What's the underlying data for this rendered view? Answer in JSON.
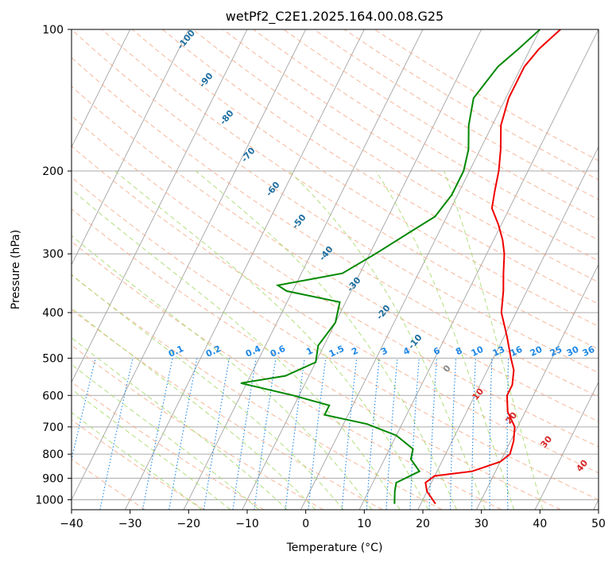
{
  "chart_data": {
    "type": "skew-t",
    "title": "wetPf2_C2E1.2025.164.00.08.G25",
    "xlabel": "Temperature (°C)",
    "ylabel": "Pressure (hPa)",
    "xlim": [
      -40,
      50
    ],
    "ylim": [
      1050,
      100
    ],
    "x_scale": "linear",
    "y_scale": "log",
    "skew_degrees_per_decade": 40,
    "x_ticks": [
      -40,
      -30,
      -20,
      -10,
      0,
      10,
      20,
      30,
      40,
      50
    ],
    "x_tick_labels": [
      "−40",
      "−30",
      "−20",
      "−10",
      "0",
      "10",
      "20",
      "30",
      "40",
      "50"
    ],
    "y_ticks": [
      100,
      200,
      300,
      400,
      500,
      600,
      700,
      800,
      900,
      1000
    ],
    "y_tick_labels": [
      "100",
      "200",
      "300",
      "400",
      "500",
      "600",
      "700",
      "800",
      "900",
      "1000"
    ],
    "grid": true,
    "colors": {
      "temperature": "#ee0000",
      "dewpoint": "#008800",
      "dry_adiabats": "#f4a582",
      "moist_adiabats": "#a6d96a",
      "mixing_ratio": "#1e88e5",
      "isotherms": "#555555"
    },
    "series": [
      {
        "role": "temperature",
        "points": [
          {
            "p": 100,
            "t": 3.5
          },
          {
            "p": 110,
            "t": 1.5
          },
          {
            "p": 120,
            "t": 0.5
          },
          {
            "p": 140,
            "t": 0.5
          },
          {
            "p": 160,
            "t": 1.5
          },
          {
            "p": 180,
            "t": 3.5
          },
          {
            "p": 200,
            "t": 5.0
          },
          {
            "p": 220,
            "t": 6.0
          },
          {
            "p": 240,
            "t": 7.0
          },
          {
            "p": 260,
            "t": 9.5
          },
          {
            "p": 280,
            "t": 11.5
          },
          {
            "p": 300,
            "t": 13.0
          },
          {
            "p": 330,
            "t": 14.5
          },
          {
            "p": 360,
            "t": 16.0
          },
          {
            "p": 400,
            "t": 17.5
          },
          {
            "p": 450,
            "t": 20.5
          },
          {
            "p": 500,
            "t": 23.0
          },
          {
            "p": 530,
            "t": 24.5
          },
          {
            "p": 570,
            "t": 25.5
          },
          {
            "p": 600,
            "t": 25.5
          },
          {
            "p": 650,
            "t": 27.0
          },
          {
            "p": 700,
            "t": 29.5
          },
          {
            "p": 750,
            "t": 30.5
          },
          {
            "p": 800,
            "t": 31.0
          },
          {
            "p": 830,
            "t": 30.0
          },
          {
            "p": 870,
            "t": 26.0
          },
          {
            "p": 890,
            "t": 20.0
          },
          {
            "p": 920,
            "t": 19.0
          },
          {
            "p": 960,
            "t": 20.0
          },
          {
            "p": 1020,
            "t": 22.5
          }
        ]
      },
      {
        "role": "dewpoint",
        "points": [
          {
            "p": 100,
            "t": 0.0
          },
          {
            "p": 110,
            "t": -2.0
          },
          {
            "p": 120,
            "t": -4.0
          },
          {
            "p": 140,
            "t": -5.5
          },
          {
            "p": 160,
            "t": -4.0
          },
          {
            "p": 180,
            "t": -2.0
          },
          {
            "p": 200,
            "t": -1.0
          },
          {
            "p": 225,
            "t": -1.0
          },
          {
            "p": 250,
            "t": -2.0
          },
          {
            "p": 270,
            "t": -5.0
          },
          {
            "p": 300,
            "t": -9.0
          },
          {
            "p": 330,
            "t": -13.0
          },
          {
            "p": 350,
            "t": -23.0
          },
          {
            "p": 360,
            "t": -21.0
          },
          {
            "p": 380,
            "t": -11.0
          },
          {
            "p": 420,
            "t": -10.0
          },
          {
            "p": 470,
            "t": -11.0
          },
          {
            "p": 510,
            "t": -10.0
          },
          {
            "p": 545,
            "t": -14.0
          },
          {
            "p": 565,
            "t": -21.0
          },
          {
            "p": 600,
            "t": -11.0
          },
          {
            "p": 630,
            "t": -4.0
          },
          {
            "p": 660,
            "t": -4.0
          },
          {
            "p": 690,
            "t": 4.0
          },
          {
            "p": 730,
            "t": 10.0
          },
          {
            "p": 780,
            "t": 14.0
          },
          {
            "p": 820,
            "t": 14.5
          },
          {
            "p": 870,
            "t": 17.0
          },
          {
            "p": 920,
            "t": 14.0
          },
          {
            "p": 960,
            "t": 14.5
          },
          {
            "p": 1020,
            "t": 15.5
          }
        ]
      }
    ],
    "dry_adiabat_labels": [
      "-100",
      "-90",
      "-80",
      "-70",
      "-60",
      "-50",
      "-40",
      "-30",
      "-20",
      "-10",
      "0",
      "10",
      "20",
      "30",
      "40"
    ],
    "mixing_ratio_labels": [
      "0.1",
      "0.2",
      "0.4",
      "0.6",
      "1",
      "1.5",
      "2",
      "3",
      "4",
      "6",
      "8",
      "10",
      "13",
      "16",
      "20",
      "25",
      "30",
      "36"
    ],
    "mixing_ratio_values": [
      0.1,
      0.2,
      0.4,
      0.6,
      1,
      1.5,
      2,
      3,
      4,
      6,
      8,
      10,
      13,
      16,
      20,
      25,
      30,
      36
    ]
  }
}
